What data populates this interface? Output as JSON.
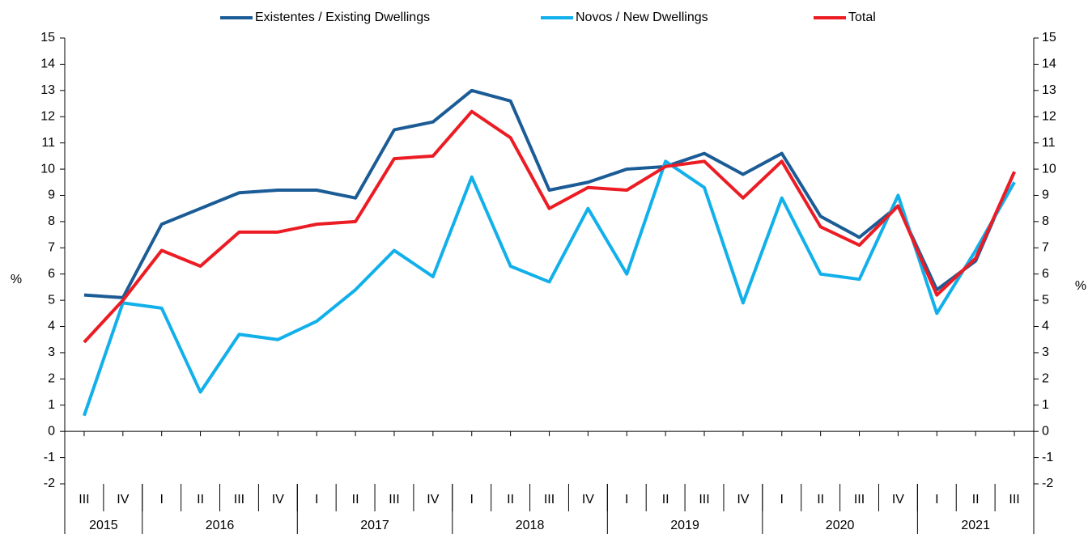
{
  "chart_data": {
    "type": "line",
    "categories": [
      "III",
      "IV",
      "I",
      "II",
      "III",
      "IV",
      "I",
      "II",
      "III",
      "IV",
      "I",
      "II",
      "III",
      "IV",
      "I",
      "II",
      "III",
      "IV",
      "I",
      "II",
      "III",
      "IV",
      "I",
      "II",
      "III"
    ],
    "x_groups": [
      {
        "label": "2015",
        "count": 2
      },
      {
        "label": "2016",
        "count": 4
      },
      {
        "label": "2017",
        "count": 4
      },
      {
        "label": "2018",
        "count": 4
      },
      {
        "label": "2019",
        "count": 4
      },
      {
        "label": "2020",
        "count": 4
      },
      {
        "label": "2021",
        "count": 3
      }
    ],
    "series": [
      {
        "name": "Existentes / Existing Dwellings",
        "color": "#1b5c96",
        "values": [
          5.2,
          5.1,
          7.9,
          8.5,
          9.1,
          9.2,
          9.2,
          8.9,
          11.5,
          11.8,
          13.0,
          12.6,
          9.2,
          9.5,
          10.0,
          10.1,
          10.6,
          9.8,
          10.6,
          8.2,
          7.4,
          8.6,
          5.4,
          6.5,
          9.9
        ]
      },
      {
        "name": "Novos / New Dwellings",
        "color": "#12b0ea",
        "values": [
          0.6,
          4.9,
          4.7,
          1.5,
          3.7,
          3.5,
          4.2,
          5.4,
          6.9,
          5.9,
          9.7,
          6.3,
          5.7,
          8.5,
          6.0,
          10.3,
          9.3,
          4.9,
          8.9,
          6.0,
          5.8,
          9.0,
          4.5,
          6.9,
          9.5
        ]
      },
      {
        "name": "Total",
        "color": "#ec1c24",
        "values": [
          3.4,
          5.0,
          6.9,
          6.3,
          7.6,
          7.6,
          7.9,
          8.0,
          10.4,
          10.5,
          12.2,
          11.2,
          8.5,
          9.3,
          9.2,
          10.1,
          10.3,
          8.9,
          10.3,
          7.8,
          7.1,
          8.6,
          5.2,
          6.6,
          9.9
        ]
      }
    ],
    "ylabel": "%",
    "y2label": "%",
    "ylim": [
      -2,
      15
    ],
    "yticks": [
      -2,
      -1,
      0,
      1,
      2,
      3,
      4,
      5,
      6,
      7,
      8,
      9,
      10,
      11,
      12,
      13,
      14,
      15
    ],
    "y2lim": [
      -2,
      15
    ],
    "y2ticks": [
      -2,
      -1,
      0,
      1,
      2,
      3,
      4,
      5,
      6,
      7,
      8,
      9,
      10,
      11,
      12,
      13,
      14,
      15
    ],
    "legend": "top"
  }
}
